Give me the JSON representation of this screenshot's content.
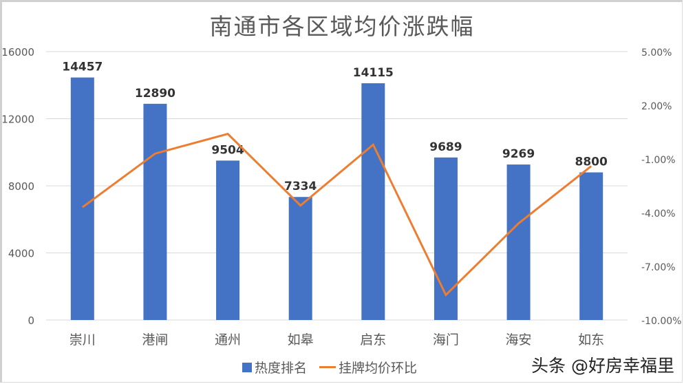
{
  "title": "南通市各区域均价涨跌幅",
  "watermark": "头条 @好房幸福里",
  "colors": {
    "bar": "#4472C4",
    "line": "#ED7D31",
    "grid": "#D9D9D9",
    "axis_text": "#595959",
    "label_text": "#333333"
  },
  "legend": [
    {
      "label": "热度排名",
      "type": "bar"
    },
    {
      "label": "挂牌均价环比",
      "type": "line"
    }
  ],
  "chart_data": {
    "type": "bar+line",
    "title": "南通市各区域均价涨跌幅",
    "categories": [
      "崇川",
      "港闸",
      "通州",
      "如皋",
      "启东",
      "海门",
      "海安",
      "如东"
    ],
    "series": [
      {
        "name": "热度排名",
        "type": "bar",
        "axis": "left",
        "values": [
          14457,
          12890,
          9504,
          7334,
          14115,
          9689,
          9269,
          8800
        ],
        "data_labels": true
      },
      {
        "name": "挂牌均价环比",
        "type": "line",
        "axis": "right",
        "values": [
          -3.7,
          -0.7,
          0.4,
          -3.6,
          -0.2,
          -8.6,
          -4.6,
          -1.4
        ],
        "unit": "%"
      }
    ],
    "left_axis": {
      "ylim": [
        0,
        16000
      ],
      "ticks": [
        "0",
        "4000",
        "8000",
        "12000",
        "16000"
      ]
    },
    "right_axis": {
      "ylim": [
        -10,
        5
      ],
      "ticks": [
        "-10.00%",
        "-7.00%",
        "-4.00%",
        "-1.00%",
        "2.00%",
        "5.00%"
      ]
    },
    "grid": true,
    "legend_position": "bottom"
  }
}
